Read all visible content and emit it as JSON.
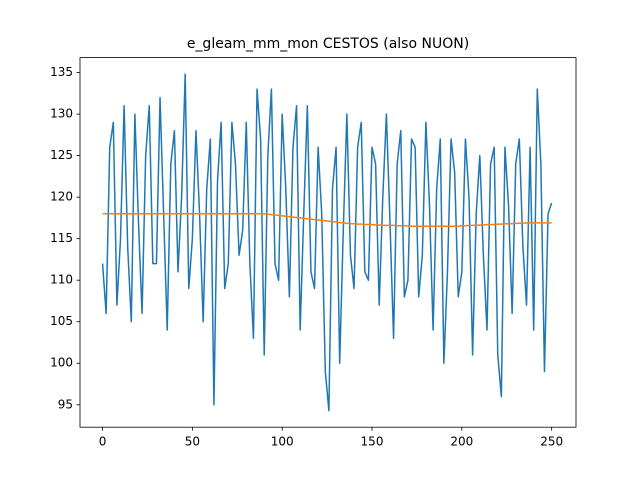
{
  "chart_data": {
    "type": "line",
    "title": "e_gleam_mm_mon CESTOS (also NUON)",
    "x": [
      0,
      2,
      4,
      6,
      8,
      10,
      12,
      14,
      16,
      18,
      20,
      22,
      24,
      26,
      28,
      30,
      32,
      34,
      36,
      38,
      40,
      42,
      44,
      46,
      48,
      50,
      52,
      54,
      56,
      58,
      60,
      62,
      64,
      66,
      68,
      70,
      72,
      74,
      76,
      78,
      80,
      82,
      84,
      86,
      88,
      90,
      92,
      94,
      96,
      98,
      100,
      102,
      104,
      106,
      108,
      110,
      112,
      114,
      116,
      118,
      120,
      122,
      124,
      126,
      128,
      130,
      132,
      134,
      136,
      138,
      140,
      142,
      144,
      146,
      148,
      150,
      152,
      154,
      156,
      158,
      160,
      162,
      164,
      166,
      168,
      170,
      172,
      174,
      176,
      178,
      180,
      182,
      184,
      186,
      188,
      190,
      192,
      194,
      196,
      198,
      200,
      202,
      204,
      206,
      208,
      210,
      212,
      214,
      216,
      218,
      220,
      222,
      224,
      226,
      228,
      230,
      232,
      234,
      236,
      238,
      240,
      242,
      244,
      246,
      248,
      250
    ],
    "series": [
      {
        "color": "#1f77b4",
        "values": [
          112,
          106,
          126,
          129,
          107,
          115,
          131,
          114,
          105,
          130,
          117,
          106,
          125,
          131,
          112,
          112,
          132,
          118,
          104,
          124,
          128,
          111,
          120,
          134.8,
          109,
          115,
          128,
          118,
          105,
          121,
          127,
          95,
          122,
          129,
          109,
          112,
          129,
          124,
          113,
          116,
          129,
          112,
          103,
          133,
          127,
          101,
          125,
          133,
          112,
          110,
          130,
          121,
          108,
          126,
          131,
          104,
          118,
          131,
          111,
          109,
          126,
          118,
          99,
          94.3,
          121,
          126,
          100,
          116,
          130,
          113,
          109,
          126,
          129,
          111,
          110,
          126,
          124,
          107,
          120,
          130,
          117,
          103,
          124,
          128,
          108,
          110,
          127,
          126,
          108,
          113,
          129,
          119,
          104,
          121,
          127,
          100,
          111,
          127,
          123,
          108,
          111,
          127,
          120,
          101,
          118,
          125,
          113,
          104,
          124,
          126,
          101,
          96,
          126,
          119,
          106,
          124,
          127,
          114,
          107,
          126,
          104,
          133,
          124,
          99,
          118,
          119.3
        ]
      },
      {
        "color": "#ff7f0e",
        "values": [
          118,
          118,
          118,
          118,
          118,
          118,
          118,
          118,
          118,
          118,
          118,
          118,
          118,
          118,
          118,
          118,
          118,
          118,
          118,
          118,
          118,
          118,
          118,
          118,
          118,
          118,
          118,
          118,
          118,
          118,
          118,
          118,
          118,
          118,
          118,
          118,
          118,
          118,
          118,
          118,
          118,
          118,
          118,
          118,
          118,
          118,
          117.95,
          117.9,
          117.85,
          117.8,
          117.75,
          117.7,
          117.65,
          117.6,
          117.55,
          117.5,
          117.45,
          117.4,
          117.35,
          117.3,
          117.25,
          117.2,
          117.15,
          117.1,
          117.05,
          117.0,
          116.95,
          116.9,
          116.85,
          116.8,
          116.8,
          116.75,
          116.75,
          116.7,
          116.7,
          116.7,
          116.65,
          116.65,
          116.6,
          116.6,
          116.6,
          116.6,
          116.55,
          116.55,
          116.55,
          116.55,
          116.5,
          116.5,
          116.5,
          116.5,
          116.5,
          116.5,
          116.5,
          116.5,
          116.5,
          116.5,
          116.5,
          116.5,
          116.5,
          116.5,
          116.55,
          116.55,
          116.6,
          116.6,
          116.6,
          116.65,
          116.65,
          116.7,
          116.7,
          116.7,
          116.75,
          116.75,
          116.8,
          116.8,
          116.8,
          116.85,
          116.85,
          116.85,
          116.9,
          116.9,
          116.9,
          116.9,
          116.9,
          116.9,
          116.9,
          116.9
        ]
      }
    ],
    "xlim": [
      -12.55,
      263.55
    ],
    "xticks": [
      0,
      50,
      100,
      150,
      200,
      250
    ],
    "ylim": [
      92.3,
      136.8
    ],
    "yticks": [
      95,
      100,
      105,
      110,
      115,
      120,
      125,
      130,
      135
    ]
  }
}
